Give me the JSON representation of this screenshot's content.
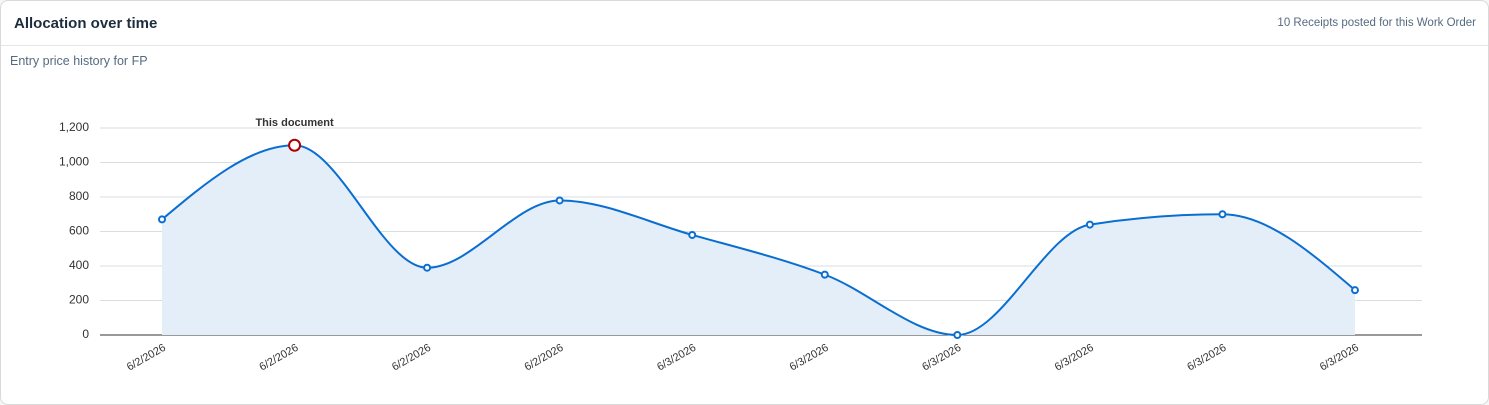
{
  "header": {
    "title": "Allocation over time",
    "info": "10 Receipts posted for this Work Order"
  },
  "subtitle": "Entry price history for FP",
  "chart_data": {
    "type": "area",
    "categories": [
      "6/2/2026",
      "6/2/2026",
      "6/2/2026",
      "6/2/2026",
      "6/3/2026",
      "6/3/2026",
      "6/3/2026",
      "6/3/2026",
      "6/3/2026",
      "6/3/2026"
    ],
    "values": [
      670,
      1100,
      390,
      780,
      580,
      350,
      0,
      640,
      700,
      260
    ],
    "color": "#0a6ed1",
    "fill": "#e3eef9",
    "ylim": [
      0,
      1200
    ],
    "yticks": [
      0,
      200,
      400,
      600,
      800,
      {
        "value": 1000,
        "label": "1,000"
      },
      {
        "value": 1200,
        "label": "1,200"
      }
    ],
    "grid": true,
    "annotations": [
      {
        "text": "This document",
        "index": 1,
        "color": "#b00000"
      }
    ]
  }
}
